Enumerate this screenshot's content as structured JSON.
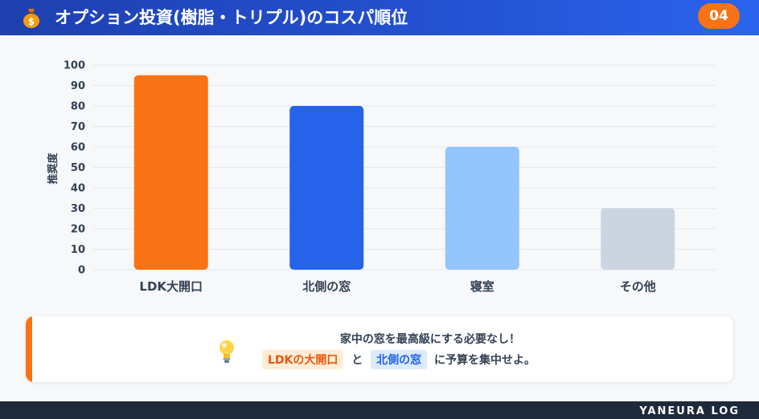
{
  "header": {
    "icon": "money-bag-icon",
    "title": "オプション投資(樹脂・トリプル)のコスパ順位",
    "page_number": "04"
  },
  "chart_data": {
    "type": "bar",
    "title": "",
    "xlabel": "",
    "ylabel": "推奨度",
    "ylim": [
      0,
      100
    ],
    "yticks": [
      0,
      10,
      20,
      30,
      40,
      50,
      60,
      70,
      80,
      90,
      100
    ],
    "grid": true,
    "categories": [
      "LDK大開口",
      "北側の窓",
      "寝室",
      "その他"
    ],
    "values": [
      95,
      80,
      60,
      30
    ],
    "colors": [
      "#f97316",
      "#2563eb",
      "#93c5fd",
      "#cbd5e1"
    ]
  },
  "note": {
    "icon": "lightbulb-icon",
    "line1": "家中の窓を最高級にする必要なし！",
    "highlight1": "LDKの大開口",
    "connector": "と",
    "highlight2": "北側の窓",
    "suffix": "に予算を集中せよ。",
    "accent_color": "#f97316"
  },
  "footer": {
    "brand": "YANEURA LOG"
  }
}
